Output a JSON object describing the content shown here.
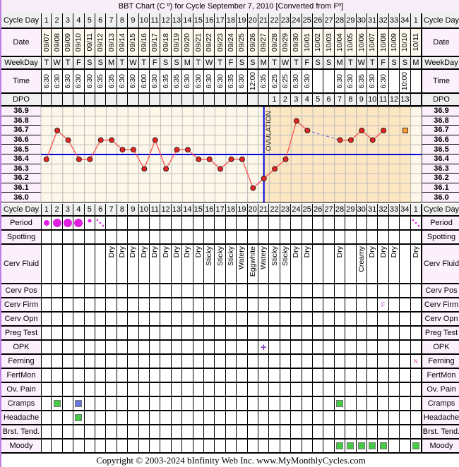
{
  "title": "BBT Chart (C º) for Cycle September 7, 2010  [Converted from Fº]",
  "row_labels": {
    "cycle_day": "Cycle Day",
    "date": "Date",
    "weekday": "WeekDay",
    "time": "Time",
    "dpo": "DPO",
    "period": "Period",
    "spotting": "Spotting",
    "cerv_fluid": "Cerv Fluid",
    "cerv_pos": "Cerv Pos",
    "cerv_firm": "Cerv Firm",
    "cerv_opn": "Cerv Opn",
    "preg_test": "Preg Test",
    "opk": "OPK",
    "ferning": "Ferning",
    "fertmon": "FertMon",
    "ov_pain": "Ov. Pain",
    "cramps": "Cramps",
    "headache": "Headache",
    "brst_tend": "Brst. Tend.",
    "moody": "Moody"
  },
  "chart_data": {
    "type": "line",
    "title": "BBT Chart (C º) for Cycle September 7, 2010  [Converted from Fº]",
    "cycle_days": [
      "1",
      "2",
      "3",
      "4",
      "5",
      "6",
      "7",
      "8",
      "9",
      "10",
      "11",
      "12",
      "13",
      "14",
      "15",
      "16",
      "17",
      "18",
      "19",
      "20",
      "21",
      "22",
      "23",
      "24",
      "25",
      "26",
      "27",
      "28",
      "29",
      "30",
      "31",
      "32",
      "33",
      "34",
      "1"
    ],
    "dates": [
      "09/07",
      "09/08",
      "09/09",
      "09/10",
      "09/11",
      "09/12",
      "09/13",
      "09/14",
      "09/15",
      "09/16",
      "09/17",
      "09/18",
      "09/19",
      "09/20",
      "09/21",
      "09/22",
      "09/23",
      "09/24",
      "09/25",
      "09/26",
      "09/27",
      "09/28",
      "09/29",
      "09/30",
      "10/01",
      "10/02",
      "10/03",
      "10/04",
      "10/05",
      "10/06",
      "10/07",
      "10/08",
      "10/09",
      "10/10",
      "10/11"
    ],
    "weekdays": [
      "T",
      "W",
      "T",
      "F",
      "S",
      "S",
      "M",
      "T",
      "W",
      "T",
      "F",
      "S",
      "S",
      "M",
      "T",
      "W",
      "T",
      "F",
      "S",
      "S",
      "M",
      "T",
      "W",
      "T",
      "F",
      "S",
      "S",
      "M",
      "T",
      "W",
      "T",
      "F",
      "S",
      "S",
      "M"
    ],
    "times": [
      "6:30",
      "6:30",
      "6:30",
      "6:30",
      "6:30",
      "6:35",
      "6:35",
      "6:30",
      "6:30",
      "6:00",
      "6:30",
      "6:35",
      "6:35",
      "6:30",
      "6:30",
      "6:30",
      "6:30",
      "6:35",
      "6:30",
      "12:00",
      "6:35",
      "6:25",
      "6:25",
      "6:30",
      "6:30",
      "",
      "",
      "6:30",
      "6:30",
      "6:35",
      "6:30",
      "6:30",
      "",
      "10:00",
      ""
    ],
    "dpo": [
      "",
      "",
      "",
      "",
      "",
      "",
      "",
      "",
      "",
      "",
      "",
      "",
      "",
      "",
      "",
      "",
      "",
      "",
      "",
      "",
      "",
      "1",
      "2",
      "3",
      "4",
      "5",
      "6",
      "7",
      "8",
      "9",
      "10",
      "11",
      "12",
      "13",
      ""
    ],
    "temps": [
      36.4,
      36.7,
      36.6,
      36.4,
      36.4,
      36.6,
      36.6,
      36.5,
      36.5,
      36.3,
      36.6,
      36.3,
      36.5,
      36.5,
      36.4,
      36.4,
      36.3,
      36.4,
      36.4,
      36.1,
      36.2,
      36.3,
      36.4,
      36.8,
      36.7,
      null,
      null,
      36.6,
      36.6,
      36.7,
      36.6,
      36.7,
      null,
      null,
      null
    ],
    "excluded_temps": [
      {
        "day_index": 34,
        "value": 36.7
      }
    ],
    "y_ticks": [
      "36.9",
      "36.8",
      "36.7",
      "36.6",
      "36.5",
      "36.4",
      "36.3",
      "36.2",
      "36.1",
      "36.0"
    ],
    "ylim": [
      36.0,
      36.9
    ],
    "coverline": 36.45,
    "ovulation_day_index": 21,
    "ovulation_label": "OVULATION",
    "grid": true,
    "colors": {
      "line": "#ff5050",
      "point": "#ee2222",
      "coverline": "#0000dd",
      "ovulation": "#0000dd",
      "pre_bg": "#fdf8ea",
      "post_bg": "#fde7c2",
      "excluded": "#ff9933"
    }
  },
  "period": [
    "medium",
    "heavy",
    "heavy",
    "heavy",
    "light",
    "spotting",
    "",
    "",
    "",
    "",
    "",
    "",
    "",
    "",
    "",
    "",
    "",
    "",
    "",
    "",
    "",
    "",
    "",
    "",
    "",
    "",
    "",
    "",
    "",
    "",
    "",
    "",
    "",
    "",
    "spotting"
  ],
  "cerv_fluid": [
    "",
    "",
    "",
    "",
    "",
    "",
    "Dry",
    "Dry",
    "Dry",
    "Dry",
    "Dry",
    "Dry",
    "Dry",
    "Dry",
    "Dry",
    "Sticky",
    "Sticky",
    "Sticky",
    "Watery",
    "Eggwhite",
    "Watery",
    "Sticky",
    "Sticky",
    "Dry",
    "Dry",
    "",
    "",
    "Dry",
    "",
    "Creamy",
    "Dry",
    "Dry",
    "Dry",
    "",
    "Dry"
  ],
  "cerv_firm": {
    "32": "F"
  },
  "opk": {
    "21": "+"
  },
  "ferning": {
    "35": "N"
  },
  "cramps": {
    "2": "#44cc44",
    "4": "#6677dd",
    "28": "#44cc44"
  },
  "headache": {
    "4": "#44cc44"
  },
  "moody": {
    "28": "#44cc44",
    "29": "#44cc44",
    "30": "#44cc44",
    "31": "#44cc44",
    "32": "#44cc44",
    "35": "#44cc44"
  },
  "footer": "Copyright © 2003-2024 bInfinity Web Inc.     www.MyMonthlyCycles.com"
}
